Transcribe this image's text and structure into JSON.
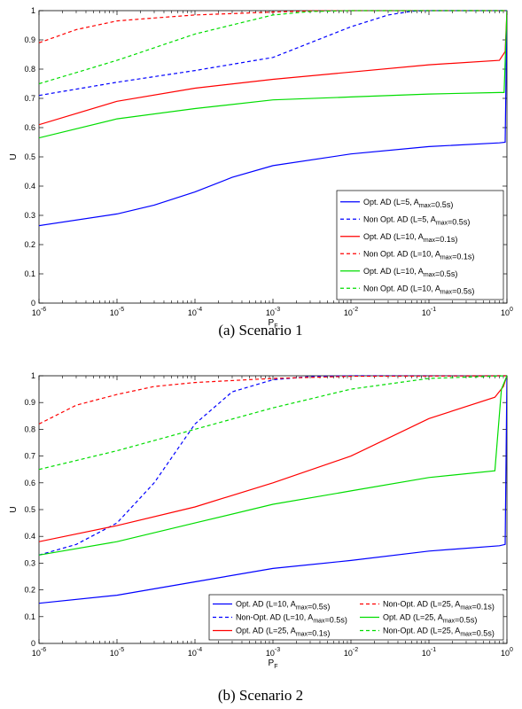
{
  "captions": [
    "(a) Scenario 1",
    "(b) Scenario 2"
  ],
  "chart_data": [
    {
      "type": "line",
      "xscale": "log",
      "xlim": [
        1e-06,
        1
      ],
      "ylim": [
        0,
        1
      ],
      "xlabel": "P_F",
      "ylabel": "U",
      "xticks": [
        1e-06,
        1e-05,
        0.0001,
        0.001,
        0.01,
        0.1,
        1
      ],
      "yticks": [
        0,
        0.1,
        0.2,
        0.3,
        0.4,
        0.5,
        0.6,
        0.7,
        0.8,
        0.9,
        1
      ],
      "legend_position": "bottom-right",
      "legend_columns": 1,
      "series": [
        {
          "name": "Opt. AD (L=5, A_max=0.5s)",
          "color": "#0000ff",
          "dash": "solid",
          "x": [
            1e-06,
            1e-05,
            3e-05,
            0.0001,
            0.0003,
            0.001,
            0.01,
            0.1,
            0.8,
            0.95,
            1
          ],
          "y": [
            0.265,
            0.305,
            0.335,
            0.38,
            0.43,
            0.47,
            0.51,
            0.535,
            0.548,
            0.55,
            1.0
          ]
        },
        {
          "name": "Non Opt. AD (L=5, A_max=0.5s)",
          "color": "#0000ff",
          "dash": "dashed",
          "x": [
            1e-06,
            1e-05,
            0.0001,
            0.001,
            0.003,
            0.01,
            0.03,
            0.06,
            0.1,
            1
          ],
          "y": [
            0.71,
            0.755,
            0.795,
            0.84,
            0.89,
            0.945,
            0.985,
            0.998,
            1.0,
            1.0
          ]
        },
        {
          "name": "Opt. AD (L=10, A_max=0.1s)",
          "color": "#ff0000",
          "dash": "solid",
          "x": [
            1e-06,
            1e-05,
            0.0001,
            0.001,
            0.01,
            0.1,
            0.8,
            0.95,
            1
          ],
          "y": [
            0.61,
            0.69,
            0.735,
            0.765,
            0.79,
            0.815,
            0.83,
            0.86,
            1.0
          ]
        },
        {
          "name": "Non Opt. AD (L=10, A_max=0.1s)",
          "color": "#ff0000",
          "dash": "dashed",
          "x": [
            1e-06,
            3e-06,
            1e-05,
            3e-05,
            0.0001,
            0.001,
            0.003,
            0.01,
            1
          ],
          "y": [
            0.89,
            0.935,
            0.965,
            0.975,
            0.985,
            0.995,
            0.999,
            1.0,
            1.0
          ]
        },
        {
          "name": "Opt. AD (L=10, A_max=0.5s)",
          "color": "#00dd00",
          "dash": "solid",
          "x": [
            1e-06,
            1e-05,
            0.0001,
            0.001,
            0.01,
            0.1,
            0.8,
            0.92,
            1
          ],
          "y": [
            0.565,
            0.63,
            0.665,
            0.695,
            0.705,
            0.715,
            0.72,
            0.72,
            1.0
          ]
        },
        {
          "name": "Non Opt. AD (L=10, A_max=0.5s)",
          "color": "#00dd00",
          "dash": "dashed",
          "x": [
            1e-06,
            1e-05,
            0.0001,
            0.001,
            0.003,
            0.01,
            1
          ],
          "y": [
            0.75,
            0.83,
            0.92,
            0.985,
            0.997,
            1.0,
            1.0
          ]
        }
      ]
    },
    {
      "type": "line",
      "xscale": "log",
      "xlim": [
        1e-06,
        1
      ],
      "ylim": [
        0,
        1
      ],
      "xlabel": "P_F",
      "ylabel": "U",
      "xticks": [
        1e-06,
        1e-05,
        0.0001,
        0.001,
        0.01,
        0.1,
        1
      ],
      "yticks": [
        0,
        0.1,
        0.2,
        0.3,
        0.4,
        0.5,
        0.6,
        0.7,
        0.8,
        0.9,
        1
      ],
      "legend_position": "bottom-right",
      "legend_columns": 2,
      "series": [
        {
          "name": "Opt. AD (L=10, A_max=0.5s)",
          "color": "#0000ff",
          "dash": "solid",
          "x": [
            1e-06,
            1e-05,
            0.0001,
            0.001,
            0.01,
            0.1,
            0.8,
            0.95,
            1
          ],
          "y": [
            0.15,
            0.18,
            0.23,
            0.28,
            0.31,
            0.345,
            0.365,
            0.37,
            1.0
          ]
        },
        {
          "name": "Non-Opt. AD (L=10, A_max=0.5s)",
          "color": "#0000ff",
          "dash": "dashed",
          "x": [
            1e-06,
            3e-06,
            1e-05,
            3e-05,
            0.0001,
            0.0003,
            0.001,
            0.003,
            0.01,
            1
          ],
          "y": [
            0.33,
            0.37,
            0.45,
            0.6,
            0.82,
            0.94,
            0.985,
            0.997,
            1.0,
            1.0
          ]
        },
        {
          "name": "Opt. AD (L=25, A_max=0.1s)",
          "color": "#ff0000",
          "dash": "solid",
          "x": [
            1e-06,
            1e-05,
            0.0001,
            0.001,
            0.01,
            0.1,
            0.7,
            0.9,
            1
          ],
          "y": [
            0.38,
            0.44,
            0.51,
            0.6,
            0.7,
            0.84,
            0.92,
            0.96,
            1.0
          ]
        },
        {
          "name": "Non-Opt. AD (L=25, A_max=0.1s)",
          "color": "#ff0000",
          "dash": "dashed",
          "x": [
            1e-06,
            3e-06,
            1e-05,
            3e-05,
            0.0001,
            0.001,
            0.01,
            1
          ],
          "y": [
            0.82,
            0.89,
            0.93,
            0.96,
            0.975,
            0.99,
            0.998,
            1.0
          ]
        },
        {
          "name": "Opt. AD (L=25, A_max=0.5s)",
          "color": "#00dd00",
          "dash": "solid",
          "x": [
            1e-06,
            1e-05,
            0.0001,
            0.001,
            0.01,
            0.1,
            0.7,
            0.85,
            1
          ],
          "y": [
            0.33,
            0.38,
            0.45,
            0.52,
            0.57,
            0.62,
            0.645,
            0.95,
            1.0
          ]
        },
        {
          "name": "Non-Opt. AD (L=25, A_max=0.5s)",
          "color": "#00dd00",
          "dash": "dashed",
          "x": [
            1e-06,
            1e-05,
            0.0001,
            0.001,
            0.01,
            0.1,
            1
          ],
          "y": [
            0.65,
            0.72,
            0.8,
            0.88,
            0.95,
            0.99,
            1.0
          ]
        }
      ]
    }
  ]
}
